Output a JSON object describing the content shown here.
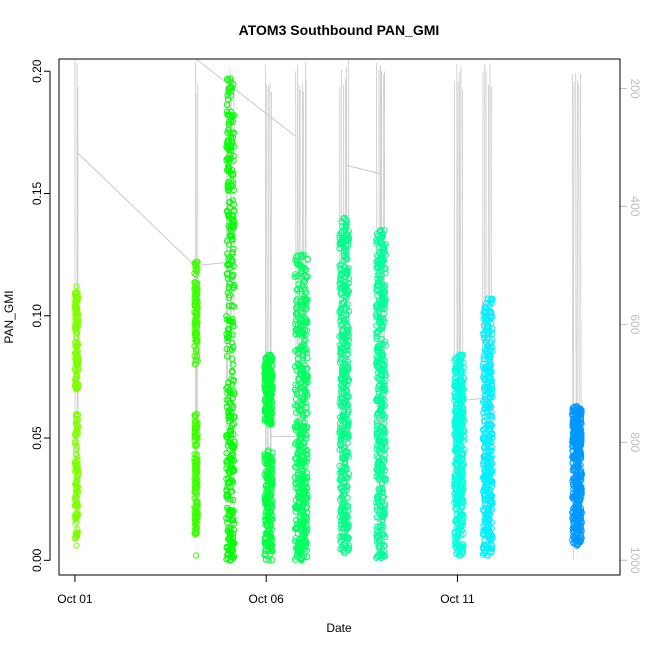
{
  "chart_data": {
    "type": "scatter",
    "title": "ATOM3 Southbound PAN_GMI",
    "xlabel": "Date",
    "ylabel": "PAN_GMI",
    "xlim": [
      "2016-09-30T14:00",
      "2016-10-15T06:00"
    ],
    "ylim": [
      -0.006,
      0.205
    ],
    "x_ticks": [
      {
        "date": "2016-10-01",
        "label": "Oct 01"
      },
      {
        "date": "2016-10-06",
        "label": "Oct 06"
      },
      {
        "date": "2016-10-11",
        "label": "Oct 11"
      }
    ],
    "y_ticks": [
      "0.00",
      "0.05",
      "0.10",
      "0.15",
      "0.20"
    ],
    "secondary_axis": {
      "side": "right",
      "quantity": "altitude (hPa, inverted)",
      "ylim": [
        1025,
        150
      ],
      "ticks": [
        "200",
        "400",
        "600",
        "800",
        "1000"
      ],
      "color": "#bebebe"
    },
    "grid": false,
    "legend": "none",
    "series": [
      {
        "date": "2016-10-01",
        "t_start": "2016-10-01T00:00",
        "t_end": "2016-10-01T02:00",
        "color": "#7fff00",
        "y_min": 0.006,
        "y_max": 0.112,
        "clusters": [
          [
            0.008,
            0.06
          ],
          [
            0.07,
            0.11
          ]
        ],
        "altitude_line": [
          [
            0.0,
            1000
          ],
          [
            0.2,
            650
          ],
          [
            0.3,
            400
          ],
          [
            0.4,
            200
          ]
        ]
      },
      {
        "date": "2016-10-04",
        "t_start": "2016-10-04T03:00",
        "t_end": "2016-10-04T05:00",
        "color": "#3fff00",
        "y_min": 0.002,
        "y_max": 0.122,
        "clusters": [
          [
            0.01,
            0.06
          ],
          [
            0.08,
            0.122
          ]
        ],
        "altitude_line": [
          [
            0.0,
            950
          ],
          [
            0.5,
            500
          ],
          [
            1.0,
            150
          ]
        ]
      },
      {
        "date": "2016-10-04",
        "t_start": "2016-10-04T23:00",
        "t_end": "2016-10-05T04:00",
        "color": "#00ff00",
        "y_min": 0.0,
        "y_max": 0.197,
        "clusters": [
          [
            0.0,
            0.05
          ],
          [
            0.05,
            0.13
          ],
          [
            0.13,
            0.197
          ]
        ],
        "altitude_line": [
          [
            0.0,
            950
          ],
          [
            0.5,
            300
          ],
          [
            1.0,
            150
          ]
        ]
      },
      {
        "date": "2016-10-06",
        "t_start": "2016-10-05T23:00",
        "t_end": "2016-10-06T04:00",
        "color": "#00ff40",
        "y_min": 0.0,
        "y_max": 0.084,
        "clusters": [
          [
            0.0,
            0.045
          ],
          [
            0.055,
            0.084
          ]
        ],
        "altitude_line": [
          [
            0.0,
            1000
          ],
          [
            0.5,
            700
          ],
          [
            1.0,
            150
          ]
        ]
      },
      {
        "date": "2016-10-06",
        "t_start": "2016-10-06T18:00",
        "t_end": "2016-10-07T02:00",
        "color": "#00ff60",
        "y_min": 0.0,
        "y_max": 0.125,
        "clusters": [
          [
            0.0,
            0.05
          ],
          [
            0.05,
            0.125
          ]
        ],
        "altitude_line": [
          [
            0.0,
            1000
          ],
          [
            0.5,
            600
          ],
          [
            1.0,
            150
          ]
        ]
      },
      {
        "date": "2016-10-08",
        "t_start": "2016-10-07T22:00",
        "t_end": "2016-10-08T04:00",
        "color": "#00ff88",
        "y_min": 0.003,
        "y_max": 0.14,
        "clusters": [
          [
            0.003,
            0.07
          ],
          [
            0.07,
            0.14
          ]
        ],
        "altitude_line": [
          [
            0.0,
            1000
          ],
          [
            0.5,
            500
          ],
          [
            1.0,
            150
          ]
        ]
      },
      {
        "date": "2016-10-08",
        "t_start": "2016-10-08T21:00",
        "t_end": "2016-10-09T03:00",
        "color": "#00ff96",
        "y_min": 0.001,
        "y_max": 0.135,
        "clusters": [
          [
            0.001,
            0.07
          ],
          [
            0.07,
            0.135
          ]
        ],
        "altitude_line": [
          [
            0.0,
            1000
          ],
          [
            0.5,
            500
          ],
          [
            1.0,
            150
          ]
        ]
      },
      {
        "date": "2016-10-10",
        "t_start": "2016-10-10T22:00",
        "t_end": "2016-10-11T04:00",
        "color": "#00ffe0",
        "y_min": 0.002,
        "y_max": 0.084,
        "clusters": [
          [
            0.002,
            0.05
          ],
          [
            0.05,
            0.084
          ]
        ],
        "altitude_line": [
          [
            0.0,
            1000
          ],
          [
            0.5,
            400
          ],
          [
            1.0,
            150
          ]
        ]
      },
      {
        "date": "2016-10-11",
        "t_start": "2016-10-11T16:00",
        "t_end": "2016-10-11T22:00",
        "color": "#00f0ff",
        "y_min": 0.002,
        "y_max": 0.107,
        "clusters": [
          [
            0.002,
            0.05
          ],
          [
            0.05,
            0.107
          ]
        ],
        "altitude_line": [
          [
            0.0,
            1000
          ],
          [
            0.5,
            400
          ],
          [
            1.0,
            150
          ]
        ]
      },
      {
        "date": "2016-10-14",
        "t_start": "2016-10-14T00:00",
        "t_end": "2016-10-14T06:00",
        "color": "#0099ff",
        "y_min": 0.006,
        "y_max": 0.063,
        "clusters": [
          [
            0.006,
            0.04
          ],
          [
            0.04,
            0.063
          ]
        ],
        "altitude_line": [
          [
            0.0,
            950
          ],
          [
            0.5,
            600
          ],
          [
            1.0,
            150
          ]
        ]
      }
    ],
    "connector_lines": [
      {
        "from": [
          "2016-10-01T02:00",
          310
        ],
        "to": [
          "2016-10-04T03:00",
          500
        ]
      },
      {
        "from": [
          "2016-10-04T05:00",
          500
        ],
        "to": [
          "2016-10-04T23:00",
          495
        ]
      },
      {
        "from": [
          "2016-10-04T04:00",
          150
        ],
        "to": [
          "2016-10-06T18:00",
          280
        ]
      },
      {
        "from": [
          "2016-10-06T03:00",
          790
        ],
        "to": [
          "2016-10-06T18:00",
          790
        ]
      },
      {
        "from": [
          "2016-10-08T02:00",
          330
        ],
        "to": [
          "2016-10-09T00:00",
          345
        ]
      },
      {
        "from": [
          "2016-10-11T00:00",
          730
        ],
        "to": [
          "2016-10-11T17:00",
          725
        ]
      }
    ]
  }
}
